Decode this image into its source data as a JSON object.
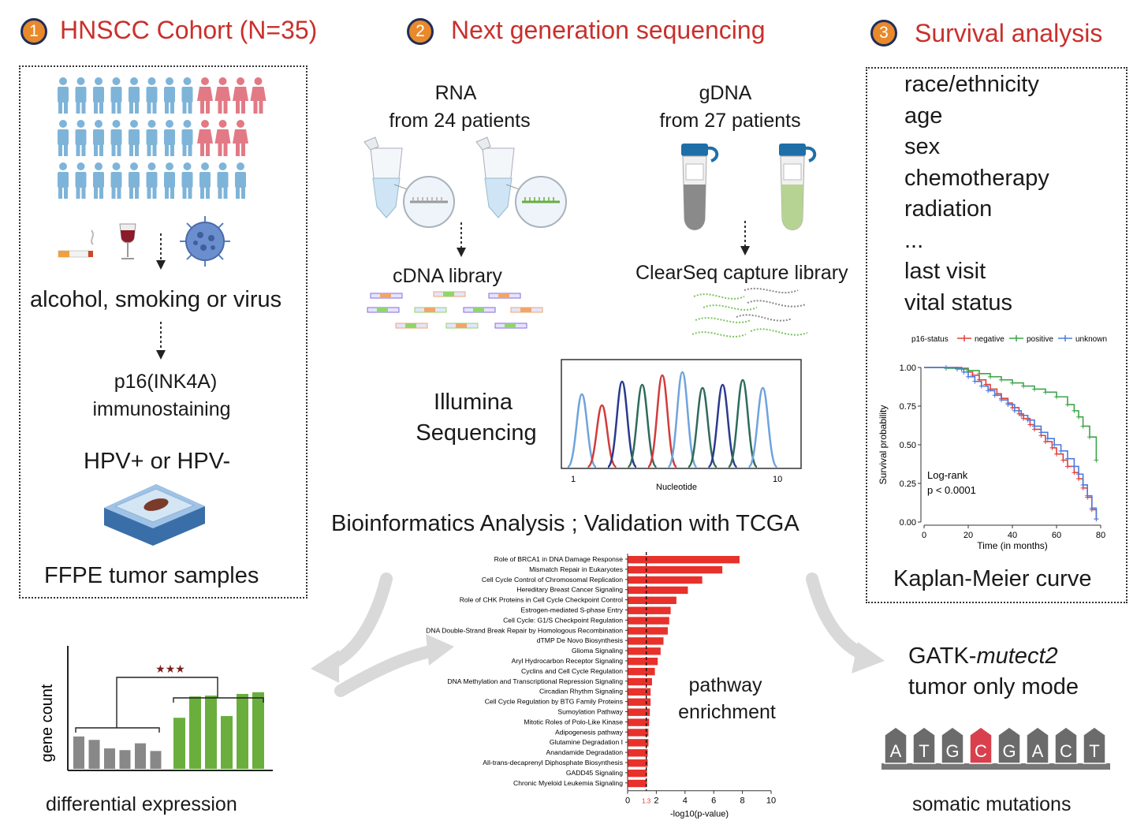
{
  "steps": [
    {
      "number": "1",
      "title": "HNSCC Cohort (N=35)"
    },
    {
      "number": "2",
      "title": "Next generation sequencing"
    },
    {
      "number": "3",
      "title": "Survival analysis"
    }
  ],
  "cohort": {
    "exposure": "alcohol, smoking or virus",
    "stain_line1": "p16(INK4A)",
    "stain_line2": "immunostaining",
    "hpv": "HPV+  or HPV-",
    "samples": "FFPE tumor samples"
  },
  "ngs": {
    "rna_line1": "RNA",
    "rna_line2": "from 24 patients",
    "gdna_line1": "gDNA",
    "gdna_line2": "from 27 patients",
    "cdna": "cDNA library",
    "clearseq": "ClearSeq capture library",
    "illumina_line1": "Illumina",
    "illumina_line2": "Sequencing",
    "nucleotide_axis": "Nucleotide",
    "nuc_tick_start": "1",
    "nuc_tick_end": "10",
    "bioinformatics": "Bioinformatics Analysis ; Validation with TCGA"
  },
  "survival": {
    "variables": [
      "race/ethnicity",
      "age",
      "sex",
      "chemotherapy",
      "radiation",
      "...",
      "last visit",
      "vital status"
    ],
    "km_label": "Kaplan-Meier curve"
  },
  "bottom": {
    "de_label": "differential  expression",
    "gene_count": "gene count",
    "stars": "★★★",
    "pathway_line1": "pathway",
    "pathway_line2": "enrichment",
    "gatk_prefix": "GATK-",
    "gatk_italic": "mutect2",
    "gatk_line2": "tumor only mode",
    "somatic": "somatic mutations",
    "letters": [
      "A",
      "T",
      "G",
      "C",
      "G",
      "A",
      "C",
      "T"
    ]
  },
  "colors": {
    "female": "#e27a86",
    "male": "#7fb4d9",
    "accent_red": "#c9302c",
    "km_negative": "#e0403a",
    "km_positive": "#3fa34a",
    "km_unknown": "#4a7be0",
    "bar_red": "#e8312b",
    "de_grey": "#888888",
    "de_green": "#6aae3e"
  },
  "chart_data": [
    {
      "type": "line",
      "title": "",
      "xlabel": "Time (in months)",
      "ylabel": "Survival probability",
      "legend_title": "p16-status",
      "legend_position": "top",
      "xlim": [
        0,
        80
      ],
      "ylim": [
        0,
        1
      ],
      "xticks": [
        "0",
        "20",
        "40",
        "60",
        "80"
      ],
      "yticks": [
        "0.00",
        "0.25",
        "0.50",
        "0.75",
        "1.00"
      ],
      "annotation_line1": "Log-rank",
      "annotation_line2": "p < 0.0001",
      "series": [
        {
          "name": "negative",
          "x": [
            0,
            10,
            17,
            20,
            22,
            25,
            28,
            30,
            33,
            35,
            38,
            40,
            43,
            45,
            48,
            50,
            53,
            55,
            58,
            60,
            63,
            65,
            68,
            70,
            72,
            74,
            76,
            78
          ],
          "y": [
            1.0,
            1.0,
            0.99,
            0.97,
            0.95,
            0.92,
            0.89,
            0.86,
            0.83,
            0.8,
            0.77,
            0.74,
            0.7,
            0.67,
            0.63,
            0.6,
            0.56,
            0.52,
            0.48,
            0.44,
            0.4,
            0.36,
            0.32,
            0.28,
            0.22,
            0.16,
            0.08,
            0.02
          ]
        },
        {
          "name": "positive",
          "x": [
            0,
            10,
            20,
            25,
            30,
            35,
            40,
            45,
            50,
            55,
            60,
            65,
            68,
            70,
            72,
            75,
            78
          ],
          "y": [
            1.0,
            0.995,
            0.98,
            0.96,
            0.94,
            0.92,
            0.9,
            0.88,
            0.86,
            0.84,
            0.81,
            0.76,
            0.72,
            0.68,
            0.62,
            0.55,
            0.4
          ]
        },
        {
          "name": "unknown",
          "x": [
            0,
            10,
            15,
            18,
            20,
            23,
            26,
            29,
            32,
            35,
            38,
            41,
            44,
            47,
            50,
            53,
            56,
            59,
            62,
            65,
            68,
            70,
            72,
            74,
            76,
            78
          ],
          "y": [
            1.0,
            1.0,
            0.99,
            0.97,
            0.94,
            0.91,
            0.88,
            0.85,
            0.82,
            0.79,
            0.76,
            0.72,
            0.69,
            0.66,
            0.62,
            0.58,
            0.54,
            0.5,
            0.46,
            0.41,
            0.36,
            0.31,
            0.24,
            0.17,
            0.09,
            0.02
          ]
        }
      ]
    },
    {
      "type": "bar",
      "orientation": "horizontal",
      "xlabel": "-log10(p-value)",
      "xlim": [
        0,
        10
      ],
      "xticks": [
        "0",
        "2",
        "4",
        "6",
        "8",
        "10"
      ],
      "threshold": 1.3,
      "threshold_label": "1.3",
      "categories": [
        "Role of BRCA1 in DNA Damage Response",
        "Mismatch Repair in Eukaryotes",
        "Cell Cycle Control of Chromosomal Replication",
        "Hereditary Breast Cancer Signaling",
        "Role of CHK Proteins in Cell Cycle Checkpoint Control",
        "Estrogen-mediated S-phase Entry",
        "Cell Cycle: G1/S Checkpoint Regulation",
        "DNA Double-Strand Break Repair by Homologous Recombination",
        "dTMP De Novo Biosynthesis",
        "Glioma Signaling",
        "Aryl Hydrocarbon Receptor Signaling",
        "Cyclins and Cell Cycle Regulation",
        "DNA Methylation and Transcriptional Repression Signaling",
        "Circadian Rhythm Signaling",
        "Cell Cycle Regulation by BTG Family Proteins",
        "Sumoylation Pathway",
        "Mitotic Roles of Polo-Like Kinase",
        "Adipogenesis pathway",
        "Glutamine Degradation I",
        "Anandamide Degradation",
        "All-trans-decaprenyl Diphosphate Biosynthesis",
        "GADD45 Signaling",
        "Chronic Myeloid Leukemia Signaling"
      ],
      "values": [
        7.8,
        6.6,
        5.2,
        4.2,
        3.4,
        3.0,
        2.9,
        2.8,
        2.5,
        2.3,
        2.1,
        1.9,
        1.7,
        1.6,
        1.6,
        1.55,
        1.5,
        1.45,
        1.45,
        1.4,
        1.4,
        1.35,
        1.35
      ]
    },
    {
      "type": "bar",
      "ylabel": "gene count",
      "series": [
        {
          "name": "",
          "values": [
            0.38,
            0.34,
            0.24,
            0.22,
            0.3,
            0.21
          ]
        },
        {
          "name": "",
          "values": [
            0.6,
            0.85,
            0.86,
            0.62,
            0.88,
            0.9
          ]
        }
      ]
    }
  ]
}
